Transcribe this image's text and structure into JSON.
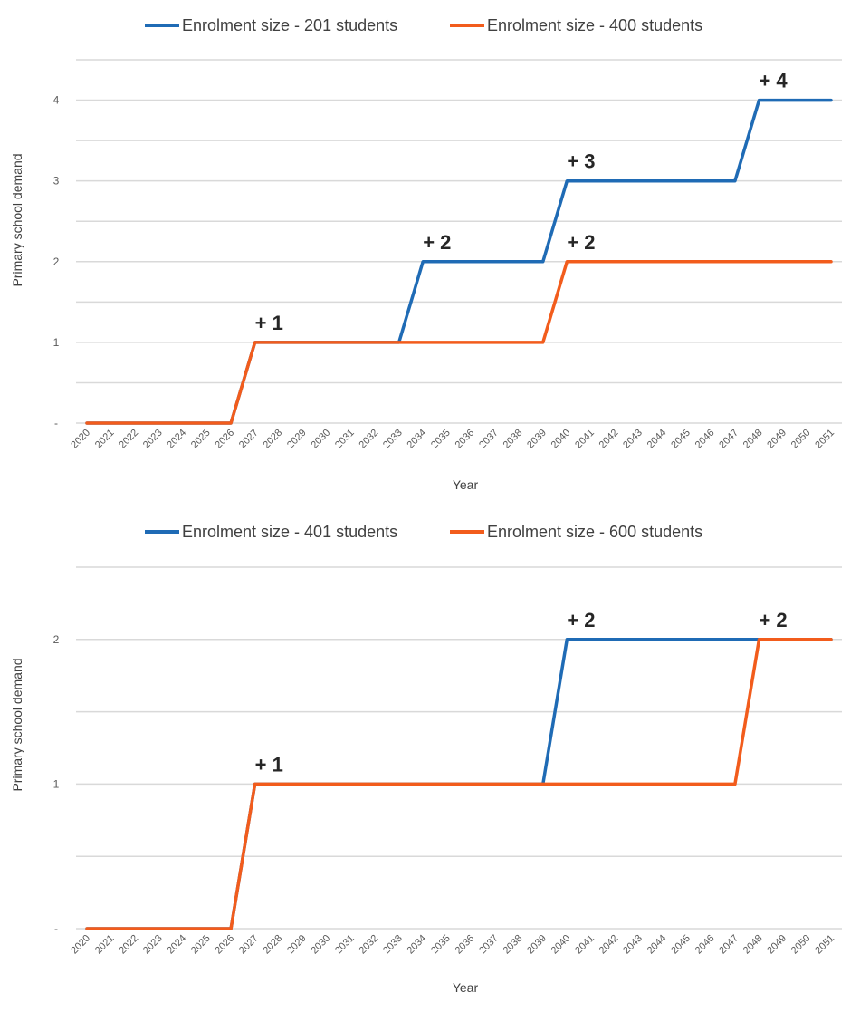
{
  "chart_data": [
    {
      "type": "line",
      "ylabel": "Primary school demand",
      "xlabel": "Year",
      "ylim": [
        0,
        4.5
      ],
      "y_ticks": [
        {
          "value": 0,
          "label": "-"
        },
        {
          "value": 1,
          "label": "1"
        },
        {
          "value": 2,
          "label": "2"
        },
        {
          "value": 3,
          "label": "3"
        },
        {
          "value": 4,
          "label": "4"
        }
      ],
      "grid_step": 0.5,
      "legend_position": "top-center",
      "categories": [
        "2020",
        "2021",
        "2022",
        "2023",
        "2024",
        "2025",
        "2026",
        "2027",
        "2028",
        "2029",
        "2030",
        "2031",
        "2032",
        "2033",
        "2034",
        "2035",
        "2036",
        "2037",
        "2038",
        "2039",
        "2040",
        "2041",
        "2042",
        "2043",
        "2044",
        "2045",
        "2046",
        "2047",
        "2048",
        "2049",
        "2050",
        "2051"
      ],
      "series": [
        {
          "name": "Enrolment size - 201 students",
          "color": "#1f6bb5",
          "values": [
            0,
            0,
            0,
            0,
            0,
            0,
            0,
            1,
            1,
            1,
            1,
            1,
            1,
            1,
            2,
            2,
            2,
            2,
            2,
            2,
            3,
            3,
            3,
            3,
            3,
            3,
            3,
            3,
            4,
            4,
            4,
            4
          ]
        },
        {
          "name": "Enrolment size - 400 students",
          "color": "#f25c1c",
          "values": [
            0,
            0,
            0,
            0,
            0,
            0,
            0,
            1,
            1,
            1,
            1,
            1,
            1,
            1,
            1,
            1,
            1,
            1,
            1,
            1,
            2,
            2,
            2,
            2,
            2,
            2,
            2,
            2,
            2,
            2,
            2,
            2
          ]
        }
      ],
      "annotations": [
        {
          "text": "+ 1",
          "x": "2027",
          "y": 1
        },
        {
          "text": "+ 2",
          "x": "2034",
          "y": 2
        },
        {
          "text": "+ 3",
          "x": "2040",
          "y": 3
        },
        {
          "text": "+ 2",
          "x": "2040",
          "y": 2
        },
        {
          "text": "+ 4",
          "x": "2048",
          "y": 4
        }
      ]
    },
    {
      "type": "line",
      "ylabel": "Primary school demand",
      "xlabel": "Year",
      "ylim": [
        0,
        2.5
      ],
      "y_ticks": [
        {
          "value": 0,
          "label": "-"
        },
        {
          "value": 1,
          "label": "1"
        },
        {
          "value": 2,
          "label": "2"
        }
      ],
      "grid_step": 0.5,
      "legend_position": "top-center",
      "categories": [
        "2020",
        "2021",
        "2022",
        "2023",
        "2024",
        "2025",
        "2026",
        "2027",
        "2028",
        "2029",
        "2030",
        "2031",
        "2032",
        "2033",
        "2034",
        "2035",
        "2036",
        "2037",
        "2038",
        "2039",
        "2040",
        "2041",
        "2042",
        "2043",
        "2044",
        "2045",
        "2046",
        "2047",
        "2048",
        "2049",
        "2050",
        "2051"
      ],
      "series": [
        {
          "name": "Enrolment size - 401 students",
          "color": "#1f6bb5",
          "values": [
            0,
            0,
            0,
            0,
            0,
            0,
            0,
            1,
            1,
            1,
            1,
            1,
            1,
            1,
            1,
            1,
            1,
            1,
            1,
            1,
            2,
            2,
            2,
            2,
            2,
            2,
            2,
            2,
            2,
            2,
            2,
            2
          ]
        },
        {
          "name": "Enrolment size - 600 students",
          "color": "#f25c1c",
          "values": [
            0,
            0,
            0,
            0,
            0,
            0,
            0,
            1,
            1,
            1,
            1,
            1,
            1,
            1,
            1,
            1,
            1,
            1,
            1,
            1,
            1,
            1,
            1,
            1,
            1,
            1,
            1,
            1,
            2,
            2,
            2,
            2
          ]
        }
      ],
      "annotations": [
        {
          "text": "+ 1",
          "x": "2027",
          "y": 1
        },
        {
          "text": "+ 2",
          "x": "2040",
          "y": 2
        },
        {
          "text": "+ 2",
          "x": "2048",
          "y": 2
        }
      ]
    }
  ]
}
